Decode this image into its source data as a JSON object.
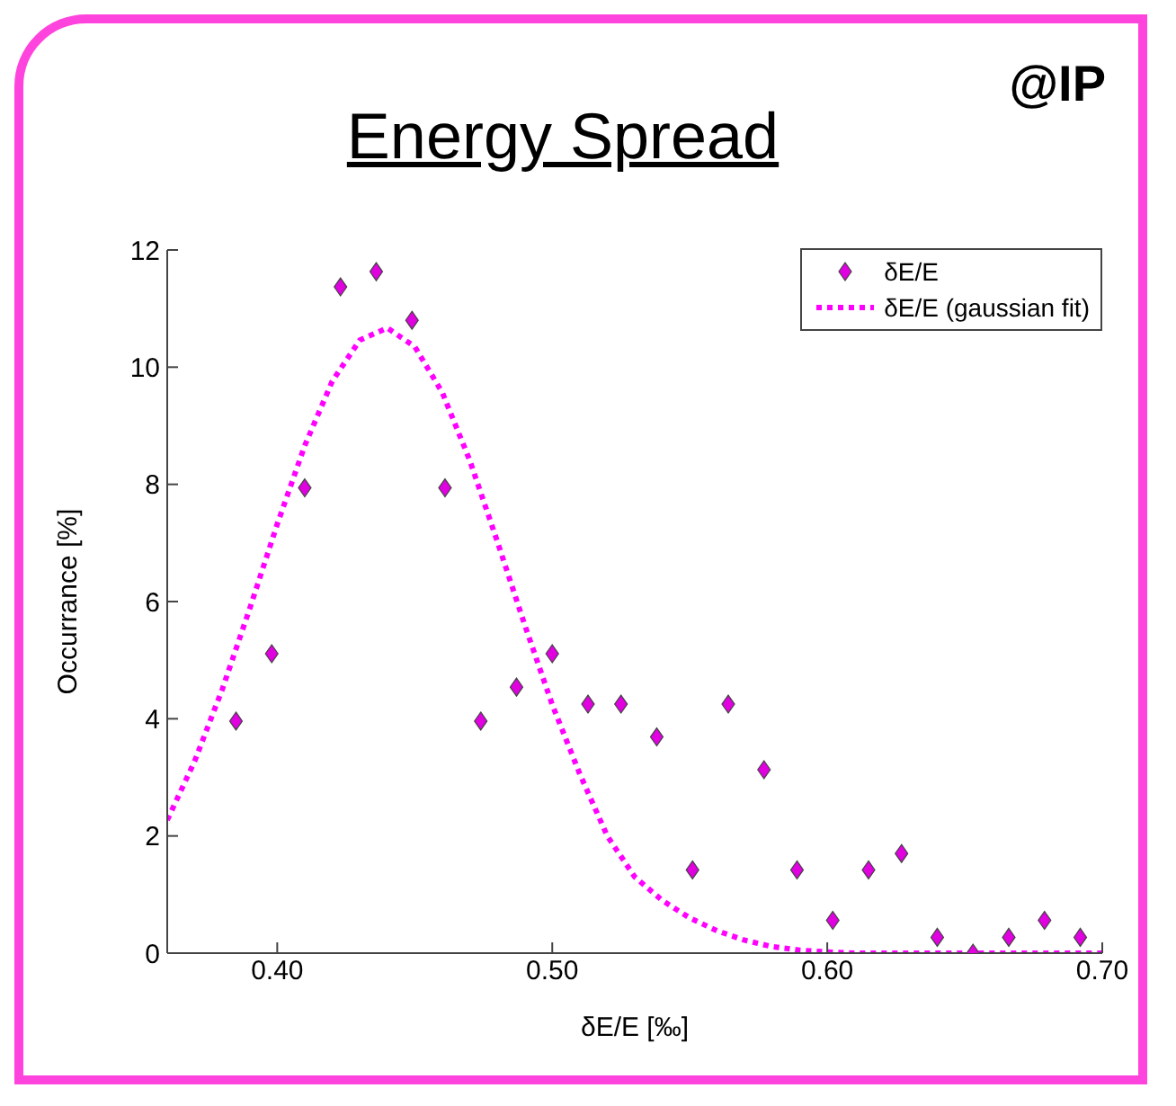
{
  "chart_data": {
    "type": "scatter",
    "title": "Energy Spread",
    "annotations": [
      "@IP"
    ],
    "xlabel": "δE/E [‰]",
    "ylabel": "Occurrance [%]",
    "xlim": [
      0.36,
      0.7
    ],
    "xticks": [
      {
        "value": 0.4,
        "label": "0.40"
      },
      {
        "value": 0.5,
        "label": "0.50"
      },
      {
        "value": 0.6,
        "label": "0.60"
      },
      {
        "value": 0.7,
        "label": "0.70"
      }
    ],
    "ylim": [
      0,
      12
    ],
    "yticks": [
      0,
      2,
      4,
      6,
      8,
      10,
      12
    ],
    "grid": false,
    "legend": "top right",
    "series": [
      {
        "name": "δE/E",
        "marker": "diamond",
        "color": "#e000e0",
        "x": [
          0.385,
          0.398,
          0.41,
          0.423,
          0.436,
          0.449,
          0.461,
          0.474,
          0.487,
          0.5,
          0.513,
          0.525,
          0.538,
          0.551,
          0.564,
          0.577,
          0.589,
          0.602,
          0.615,
          0.627,
          0.64,
          0.653,
          0.666,
          0.679,
          0.692
        ],
        "values": [
          3.96,
          5.11,
          7.94,
          11.37,
          11.63,
          10.8,
          7.94,
          3.96,
          4.54,
          5.11,
          4.25,
          4.25,
          3.69,
          1.42,
          4.25,
          3.13,
          1.42,
          0.56,
          1.42,
          1.7,
          0.27,
          0,
          0.27,
          0.56,
          0.27
        ]
      },
      {
        "name": "δE/E (gaussian fit)",
        "type": "line",
        "marker": "none",
        "line_style": "dotted",
        "color": "#ff00ff",
        "x": [
          0.36,
          0.37,
          0.38,
          0.39,
          0.4,
          0.41,
          0.42,
          0.43,
          0.44,
          0.45,
          0.46,
          0.47,
          0.48,
          0.49,
          0.5,
          0.51,
          0.52,
          0.53,
          0.54,
          0.55,
          0.56,
          0.57,
          0.58,
          0.59,
          0.6,
          0.61,
          0.62,
          0.63,
          0.64,
          0.65,
          0.66,
          0.67,
          0.68,
          0.69,
          0.7
        ],
        "values": [
          2.27,
          3.28,
          4.5,
          5.88,
          7.32,
          8.66,
          9.76,
          10.46,
          10.67,
          10.35,
          9.57,
          8.41,
          7.03,
          5.6,
          4.24,
          3.06,
          2.0,
          1.3,
          0.9,
          0.6,
          0.38,
          0.22,
          0.11,
          0.05,
          0.02,
          0,
          0,
          0,
          0,
          0,
          0,
          0,
          0,
          0,
          0
        ]
      }
    ]
  }
}
